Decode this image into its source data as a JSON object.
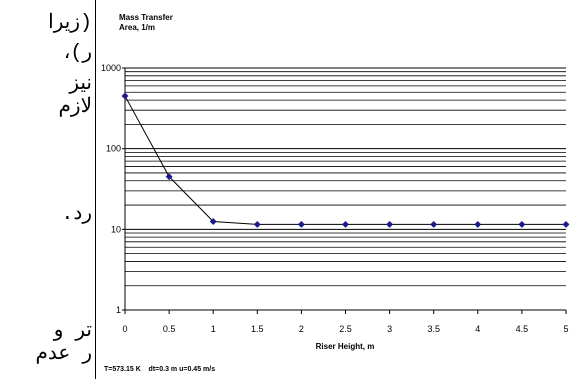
{
  "background_text": {
    "line1": "(زیرا",
    "line2": "ر)،",
    "line3": "نیز",
    "line4": "لازم",
    "line5": "رد.",
    "line6": "تر و",
    "line7": "ر عدم"
  },
  "chart_data": {
    "type": "line",
    "title": "Mass Transfer",
    "subtitle": "Area, 1/m",
    "xlabel": "Riser Height, m",
    "ylabel": "",
    "x": [
      0,
      0.5,
      1,
      1.5,
      2,
      2.5,
      3,
      3.5,
      4,
      4.5,
      5
    ],
    "series": [
      {
        "values": [
          450,
          45,
          12.5,
          11.5,
          11.5,
          11.5,
          11.5,
          11.5,
          11.5,
          11.5,
          11.5
        ]
      }
    ],
    "xticks": [
      "0",
      "0.5",
      "1",
      "1.5",
      "2",
      "2.5",
      "3",
      "3.5",
      "4",
      "4.5",
      "5"
    ],
    "yticks": [
      "1",
      "10",
      "100",
      "1000"
    ],
    "xlim": [
      0,
      5
    ],
    "ylim": [
      1,
      1000
    ],
    "yscale": "log",
    "grid": "horizontal minor and major",
    "annotation": "T=573.15 K    dt=0.3 m u=0.45 m/s",
    "colors": {
      "line": "#000000",
      "marker": "#1a1a8c"
    }
  }
}
